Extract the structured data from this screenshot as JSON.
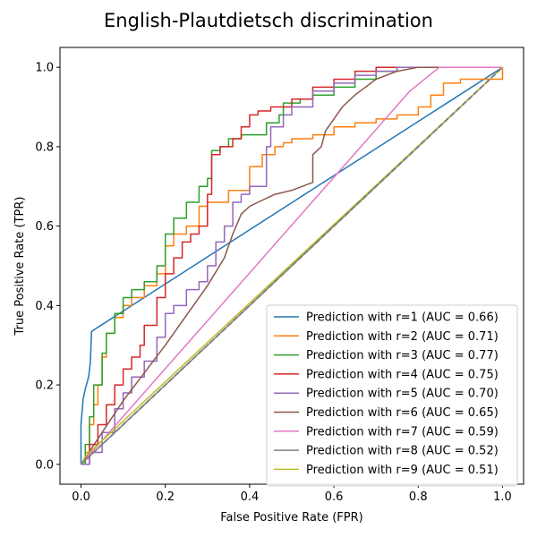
{
  "chart_data": {
    "type": "line",
    "title": "English-Plautdietsch discrimination",
    "xlabel": "False Positive Rate (FPR)",
    "ylabel": "True Positive Rate (TPR)",
    "xlim": [
      -0.05,
      1.05
    ],
    "ylim": [
      -0.05,
      1.05
    ],
    "xticks": [
      0.0,
      0.2,
      0.4,
      0.6,
      0.8,
      1.0
    ],
    "yticks": [
      0.0,
      0.2,
      0.4,
      0.6,
      0.8,
      1.0
    ],
    "tick_labels_x": [
      "0.0",
      "0.2",
      "0.4",
      "0.6",
      "0.8",
      "1.0"
    ],
    "tick_labels_y": [
      "0.0",
      "0.2",
      "0.4",
      "0.6",
      "0.8",
      "1.0"
    ],
    "grid": false,
    "legend_position": "lower right",
    "series": [
      {
        "name": "Prediction with r=1 (AUC = 0.66)",
        "color": "#1f77b4",
        "step": false,
        "x": [
          0,
          0,
          0.005,
          0.01,
          0.018,
          0.022,
          0.025,
          1
        ],
        "y": [
          0,
          0.1,
          0.165,
          0.19,
          0.22,
          0.255,
          0.335,
          1
        ]
      },
      {
        "name": "Prediction with r=2 (AUC = 0.71)",
        "color": "#ff7f0e",
        "step": true,
        "x": [
          0,
          0.01,
          0.02,
          0.03,
          0.04,
          0.05,
          0.06,
          0.08,
          0.1,
          0.12,
          0.15,
          0.18,
          0.2,
          0.22,
          0.25,
          0.28,
          0.3,
          0.35,
          0.4,
          0.43,
          0.46,
          0.48,
          0.5,
          0.55,
          0.6,
          0.65,
          0.7,
          0.75,
          0.8,
          0.83,
          0.86,
          0.9,
          1
        ],
        "y": [
          0,
          0.03,
          0.1,
          0.15,
          0.2,
          0.27,
          0.33,
          0.37,
          0.4,
          0.42,
          0.45,
          0.48,
          0.55,
          0.58,
          0.6,
          0.65,
          0.66,
          0.69,
          0.75,
          0.78,
          0.8,
          0.81,
          0.82,
          0.83,
          0.85,
          0.86,
          0.87,
          0.88,
          0.9,
          0.93,
          0.96,
          0.97,
          1
        ]
      },
      {
        "name": "Prediction with r=3 (AUC = 0.77)",
        "color": "#2ca02c",
        "step": true,
        "x": [
          0,
          0.01,
          0.02,
          0.03,
          0.05,
          0.06,
          0.08,
          0.1,
          0.12,
          0.15,
          0.18,
          0.2,
          0.22,
          0.25,
          0.28,
          0.3,
          0.31,
          0.32,
          0.33,
          0.35,
          0.38,
          0.4,
          0.44,
          0.47,
          0.48,
          0.52,
          0.55,
          0.6,
          0.65,
          0.7,
          0.75,
          0.8,
          1
        ],
        "y": [
          0,
          0.05,
          0.12,
          0.2,
          0.28,
          0.33,
          0.38,
          0.42,
          0.44,
          0.46,
          0.5,
          0.58,
          0.62,
          0.66,
          0.7,
          0.72,
          0.79,
          0.79,
          0.8,
          0.82,
          0.83,
          0.83,
          0.86,
          0.88,
          0.91,
          0.92,
          0.93,
          0.95,
          0.97,
          0.99,
          1,
          1,
          1
        ]
      },
      {
        "name": "Prediction with r=4 (AUC = 0.75)",
        "color": "#d62728",
        "step": true,
        "x": [
          0,
          0.02,
          0.04,
          0.06,
          0.08,
          0.1,
          0.12,
          0.14,
          0.15,
          0.18,
          0.2,
          0.22,
          0.24,
          0.26,
          0.28,
          0.3,
          0.31,
          0.33,
          0.36,
          0.38,
          0.4,
          0.42,
          0.45,
          0.5,
          0.55,
          0.6,
          0.65,
          0.7,
          0.75,
          0.8,
          1
        ],
        "y": [
          0,
          0.05,
          0.1,
          0.15,
          0.2,
          0.24,
          0.27,
          0.3,
          0.35,
          0.42,
          0.48,
          0.52,
          0.56,
          0.58,
          0.6,
          0.68,
          0.78,
          0.8,
          0.82,
          0.85,
          0.88,
          0.89,
          0.9,
          0.92,
          0.95,
          0.97,
          0.99,
          1,
          1,
          1,
          1
        ]
      },
      {
        "name": "Prediction with r=5 (AUC = 0.70)",
        "color": "#9467bd",
        "step": true,
        "x": [
          0,
          0.02,
          0.05,
          0.08,
          0.1,
          0.12,
          0.15,
          0.18,
          0.2,
          0.22,
          0.25,
          0.28,
          0.3,
          0.32,
          0.34,
          0.36,
          0.38,
          0.4,
          0.42,
          0.44,
          0.45,
          0.48,
          0.5,
          0.55,
          0.6,
          0.65,
          0.7,
          0.75,
          0.8,
          1
        ],
        "y": [
          0,
          0.03,
          0.08,
          0.14,
          0.18,
          0.22,
          0.26,
          0.32,
          0.38,
          0.4,
          0.44,
          0.46,
          0.5,
          0.56,
          0.6,
          0.66,
          0.68,
          0.7,
          0.7,
          0.8,
          0.85,
          0.88,
          0.9,
          0.94,
          0.96,
          0.98,
          0.99,
          1,
          1,
          1
        ]
      },
      {
        "name": "Prediction with r=6 (AUC = 0.65)",
        "color": "#8c564b",
        "step": false,
        "x": [
          0,
          0.1,
          0.2,
          0.3,
          0.34,
          0.36,
          0.38,
          0.4,
          0.42,
          0.46,
          0.5,
          0.55,
          0.55,
          0.57,
          0.58,
          0.6,
          0.62,
          0.65,
          0.7,
          0.75,
          0.8,
          0.9,
          1
        ],
        "y": [
          0,
          0.16,
          0.3,
          0.45,
          0.52,
          0.58,
          0.63,
          0.65,
          0.66,
          0.68,
          0.69,
          0.71,
          0.78,
          0.8,
          0.84,
          0.87,
          0.9,
          0.93,
          0.97,
          0.99,
          1,
          1,
          1
        ]
      },
      {
        "name": "Prediction with r=7 (AUC = 0.59)",
        "color": "#e377c2",
        "step": false,
        "x": [
          0,
          0.78,
          0.85,
          1
        ],
        "y": [
          0,
          0.94,
          1,
          1
        ]
      },
      {
        "name": "Prediction with r=8 (AUC = 0.52)",
        "color": "#7f7f7f",
        "step": false,
        "x": [
          0,
          1
        ],
        "y": [
          0,
          1
        ]
      },
      {
        "name": "Prediction with r=9 (AUC = 0.51)",
        "color": "#bcbd22",
        "step": false,
        "x": [
          0,
          0.01,
          1
        ],
        "y": [
          0,
          0.02,
          1
        ]
      }
    ],
    "reference_line": {
      "x": [
        0,
        1
      ],
      "y": [
        0,
        1
      ],
      "color": "#808080",
      "style": "dashed"
    }
  }
}
